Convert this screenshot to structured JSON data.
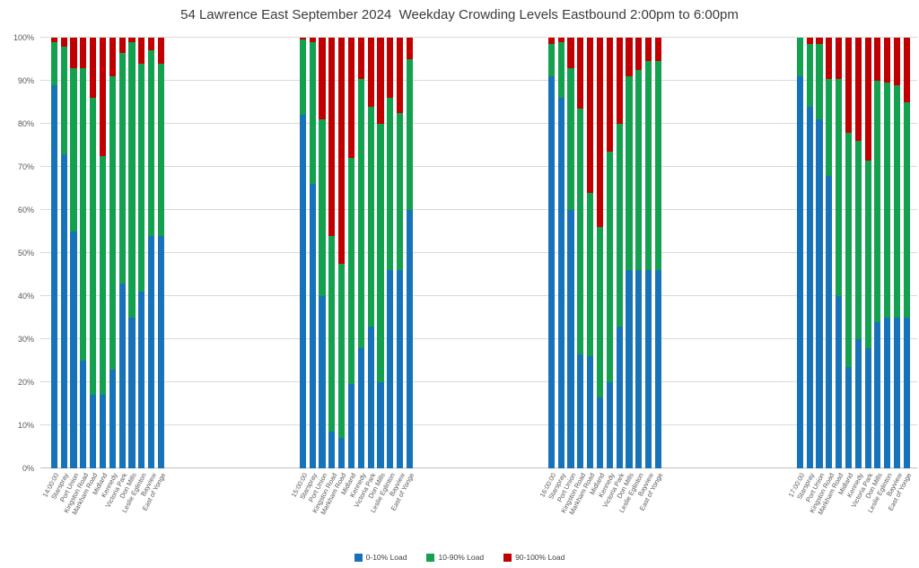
{
  "title": "54 Lawrence East September 2024  Weekday Crowding Levels Eastbound 2:00pm to 6:00pm",
  "legend": {
    "items": [
      {
        "label": "0-10% Load",
        "color": "#1673b9"
      },
      {
        "label": "10-90% Load",
        "color": "#13a04f"
      },
      {
        "label": "90-100% Load",
        "color": "#c00000"
      }
    ]
  },
  "chart_data": {
    "type": "bar",
    "stacked": true,
    "stacked_percent": true,
    "title": "54 Lawrence East September 2024  Weekday Crowding Levels Eastbound 2:00pm to 6:00pm",
    "xlabel": "",
    "ylabel": "",
    "ylim": [
      0,
      100
    ],
    "grid": true,
    "legend_position": "bottom",
    "y_ticks": [
      "0%",
      "10%",
      "20%",
      "30%",
      "40%",
      "50%",
      "60%",
      "70%",
      "80%",
      "90%",
      "100%"
    ],
    "colors": {
      "0-10% Load": "#1673b9",
      "10-90% Load": "#13a04f",
      "90-100% Load": "#c00000"
    },
    "groups": [
      {
        "time": "14:00:00",
        "categories": [
          "14:00:00",
          "Starspray",
          "Port Union",
          "Kingston Road",
          "Markham Road",
          "Midland",
          "Kennedy",
          "Victoria Park",
          "Don Mills",
          "Leslie Eglinton",
          "Bayview",
          "East of Yonge"
        ],
        "series": [
          {
            "name": "0-10% Load",
            "values": [
              89,
              73,
              55,
              25,
              17,
              17,
              23,
              43,
              35,
              41,
              54,
              54
            ]
          },
          {
            "name": "10-90% Load",
            "values": [
              10,
              25,
              38,
              68,
              69,
              55.5,
              68,
              53.5,
              64,
              53,
              43,
              40
            ]
          },
          {
            "name": "90-100% Load",
            "values": [
              1,
              2,
              7,
              7,
              14,
              27.5,
              9,
              3.5,
              1,
              6,
              3,
              6
            ]
          }
        ]
      },
      {
        "time": "15:00:00",
        "categories": [
          "15:00:00",
          "Starspray",
          "Port Union",
          "Kingston Road",
          "Markham Road",
          "Midland",
          "Kennedy",
          "Victoria Park",
          "Don Mills",
          "Leslie Eglinton",
          "Bayview",
          "East of Yonge"
        ],
        "series": [
          {
            "name": "0-10% Load",
            "values": [
              82,
              66,
              40,
              8.5,
              7,
              19.5,
              28,
              33,
              20,
              46,
              46,
              60
            ]
          },
          {
            "name": "10-90% Load",
            "values": [
              17.5,
              33,
              41,
              45.5,
              40.5,
              52.5,
              62.5,
              51,
              60,
              40,
              36.5,
              35
            ]
          },
          {
            "name": "90-100% Load",
            "values": [
              0.5,
              1,
              19,
              46,
              52.5,
              28,
              9.5,
              16,
              20,
              14,
              17.5,
              5
            ]
          }
        ]
      },
      {
        "time": "16:00:00",
        "categories": [
          "16:00:00",
          "Starspray",
          "Port Union",
          "Kingston Road",
          "Markham Road",
          "Midland",
          "Kennedy",
          "Victoria Park",
          "Don Mills",
          "Leslie Eglinton",
          "Bayview",
          "East of Yonge"
        ],
        "series": [
          {
            "name": "0-10% Load",
            "values": [
              91,
              86,
              60,
              26.5,
              26,
              16.5,
              20,
              33,
              46,
              46,
              46,
              46
            ]
          },
          {
            "name": "10-90% Load",
            "values": [
              7.5,
              13,
              33,
              57,
              38,
              39.5,
              53.5,
              47,
              45,
              46.5,
              48.5,
              48.5
            ]
          },
          {
            "name": "90-100% Load",
            "values": [
              1.5,
              1,
              7,
              16.5,
              36,
              44,
              26.5,
              20,
              9,
              7.5,
              5.5,
              5.5
            ]
          }
        ]
      },
      {
        "time": "17:00:00",
        "categories": [
          "17:00:00",
          "Starspray",
          "Port Union",
          "Kingston Road",
          "Markham Road",
          "Midland",
          "Kennedy",
          "Victoria Park",
          "Don Mills",
          "Leslie Eglinton",
          "Bayview",
          "East of Yonge"
        ],
        "series": [
          {
            "name": "0-10% Load",
            "values": [
              91,
              84,
              81,
              68,
              40,
              23.5,
              30,
              28,
              34,
              35,
              35,
              35
            ]
          },
          {
            "name": "10-90% Load",
            "values": [
              9,
              14.5,
              17.5,
              22.5,
              50.5,
              54.5,
              46,
              43.5,
              56,
              54.5,
              54,
              50
            ]
          },
          {
            "name": "90-100% Load",
            "values": [
              0,
              1.5,
              1.5,
              9.5,
              9.5,
              22,
              24,
              28.5,
              10,
              10.5,
              11,
              15
            ]
          }
        ]
      }
    ]
  }
}
